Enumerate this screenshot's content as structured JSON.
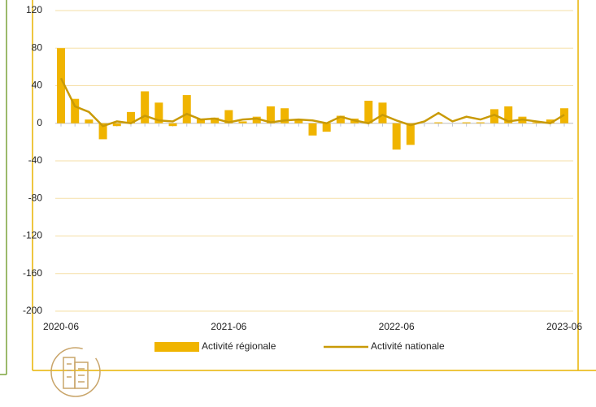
{
  "chart_data": {
    "type": "bar-line",
    "categories": [
      "2020-06",
      null,
      null,
      null,
      null,
      null,
      null,
      null,
      null,
      null,
      null,
      null,
      "2021-06",
      null,
      null,
      null,
      null,
      null,
      null,
      null,
      null,
      null,
      null,
      null,
      "2022-06",
      null,
      null,
      null,
      null,
      null,
      null,
      null,
      null,
      null,
      null,
      null,
      "2023-06"
    ],
    "series": [
      {
        "name": "Activité régionale",
        "type": "bar",
        "color": "#f0b400",
        "values": [
          80,
          26,
          4,
          -17,
          -3,
          12,
          34,
          22,
          -3,
          30,
          5,
          6,
          14,
          2,
          7,
          18,
          16,
          3,
          -13,
          -9,
          8,
          5,
          24,
          22,
          -28,
          -23,
          0,
          1,
          0,
          1,
          1,
          15,
          18,
          7,
          1,
          4,
          16
        ]
      },
      {
        "name": "Activité nationale",
        "type": "line",
        "color": "#c99a06",
        "values": [
          48,
          18,
          12,
          -3,
          2,
          0,
          8,
          3,
          2,
          10,
          4,
          5,
          1,
          4,
          5,
          1,
          3,
          4,
          3,
          0,
          7,
          3,
          0,
          9,
          3,
          -2,
          2,
          11,
          2,
          7,
          4,
          9,
          2,
          4,
          2,
          0,
          9
        ]
      }
    ],
    "ylim": [
      -200,
      120
    ],
    "yticks": [
      -200,
      -160,
      -120,
      -80,
      -40,
      0,
      40,
      80,
      120
    ],
    "grid": true
  }
}
